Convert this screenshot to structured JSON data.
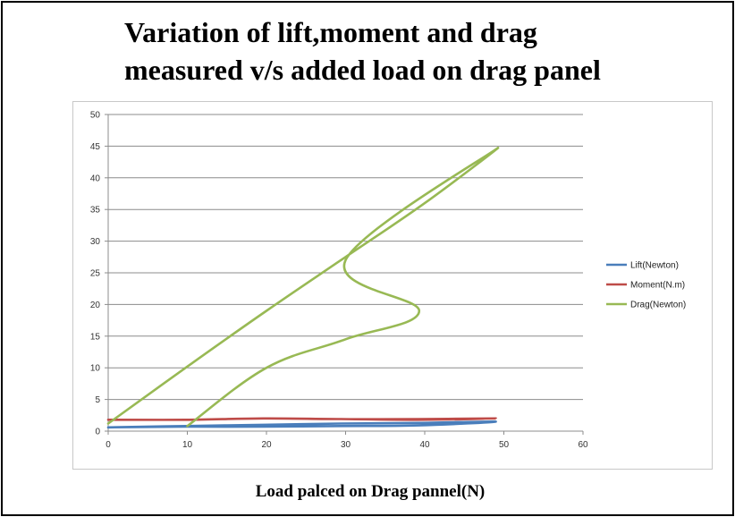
{
  "chart_data": {
    "type": "line",
    "title": "Variation of lift,moment and drag measured v/s added load on drag panel",
    "title_lines": [
      "Variation of lift,moment and drag",
      "measured v/s added load on drag panel"
    ],
    "xlabel": "Load palced on Drag pannel(N)",
    "ylabel": "",
    "xlim": [
      0,
      60
    ],
    "ylim": [
      0,
      50
    ],
    "xticks": [
      0,
      10,
      20,
      30,
      40,
      50,
      60
    ],
    "yticks": [
      0,
      5,
      10,
      15,
      20,
      25,
      30,
      35,
      40,
      45,
      50
    ],
    "grid": "horizontal",
    "legend_position": "right",
    "series": [
      {
        "name": "Lift(Newton)",
        "color": "#4a7ebb",
        "x": [
          0,
          9.8,
          19.6,
          29.4,
          39.2,
          49,
          39.2,
          29.4,
          19.6,
          9.8,
          0
        ],
        "y": [
          0.6,
          0.8,
          1.0,
          1.2,
          1.3,
          1.5,
          0.9,
          0.8,
          0.7,
          0.7,
          0.6
        ]
      },
      {
        "name": "Moment(N.m)",
        "color": "#be4b48",
        "x": [
          0,
          9.8,
          19.6,
          29.4,
          39.2,
          49,
          39.2,
          29.4,
          19.6,
          9.8,
          0
        ],
        "y": [
          1.8,
          1.8,
          2.0,
          1.9,
          1.9,
          2.0,
          1.8,
          1.9,
          2.0,
          1.8,
          1.8
        ]
      },
      {
        "name": "Drag(Newton)",
        "color": "#98b954",
        "x": [
          10,
          20,
          30,
          39.3,
          30,
          49,
          40,
          30,
          20,
          10,
          0
        ],
        "y": [
          0.8,
          10,
          14.5,
          19,
          27,
          44.5,
          36,
          27.5,
          19,
          10.2,
          1.2
        ]
      }
    ]
  }
}
